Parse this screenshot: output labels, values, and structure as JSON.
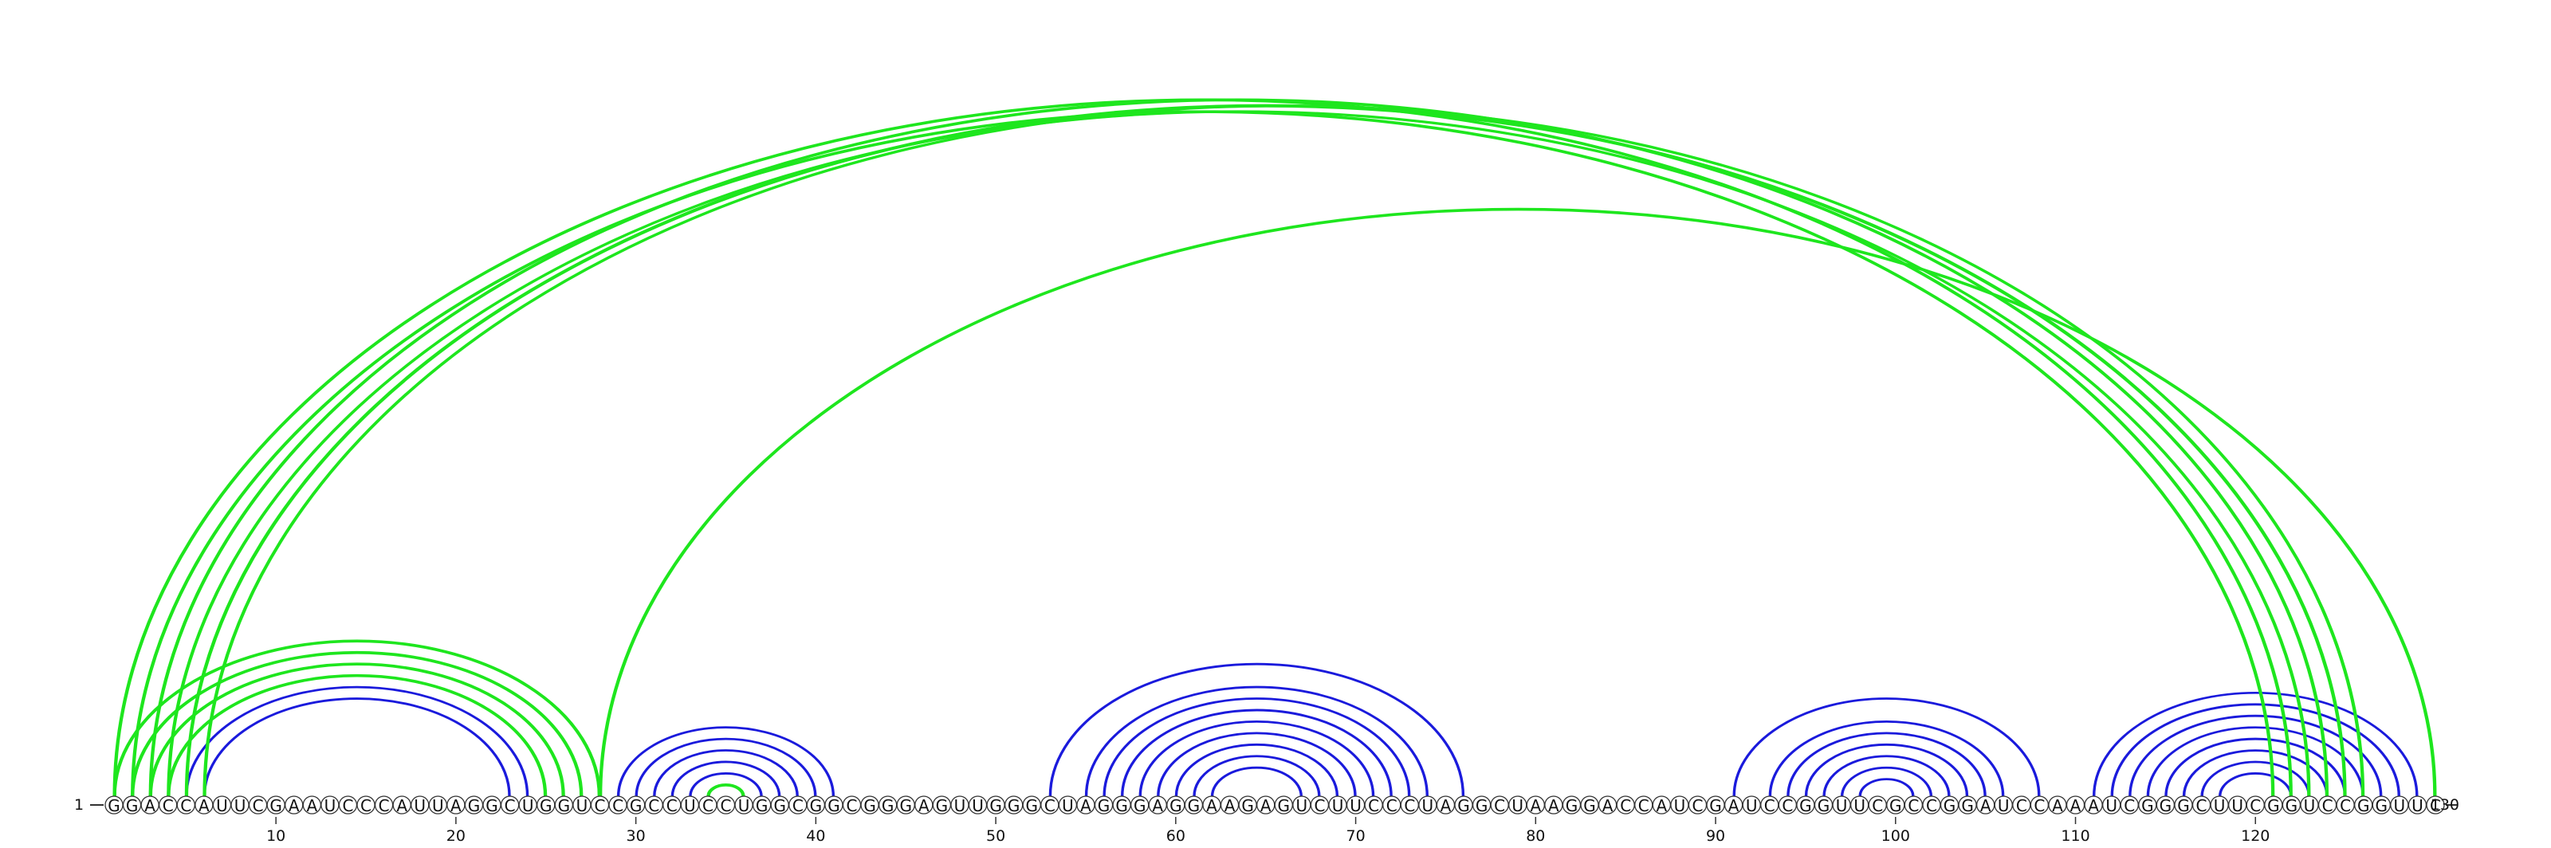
{
  "diagram": {
    "type": "rna-arc-diagram",
    "sequence": "GGACCAUUCGAAUCCCAUUAGGCUGGUCCGCCUCCUGGCGGCGGGAGUUGGGCUAGGGAGGAAGAGUCUUCCCUAGGCUAAGGACCAUCGAUCCGGUUCGCCGGAUCCAAAUCGGGCUUCGGUCCGGUUC",
    "start_label": "1",
    "end_label": "130",
    "tick_positions": [
      10,
      20,
      30,
      40,
      50,
      60,
      70,
      80,
      90,
      100,
      110,
      120
    ],
    "tick_labels": [
      "10",
      "20",
      "30",
      "40",
      "50",
      "60",
      "70",
      "80",
      "90",
      "100",
      "110",
      "120"
    ],
    "colors": {
      "blue_arcs": "#1a1adc",
      "green_arcs": "#1ee61e",
      "nucleotide_fill": "#ffffff",
      "nucleotide_stroke": "#333333"
    },
    "blue_pairs": [
      [
        5,
        24
      ],
      [
        6,
        23
      ],
      [
        29,
        41
      ],
      [
        30,
        40
      ],
      [
        31,
        39
      ],
      [
        32,
        38
      ],
      [
        33,
        37
      ],
      [
        53,
        76
      ],
      [
        55,
        74
      ],
      [
        56,
        73
      ],
      [
        57,
        72
      ],
      [
        58,
        71
      ],
      [
        59,
        70
      ],
      [
        60,
        69
      ],
      [
        61,
        68
      ],
      [
        62,
        67
      ],
      [
        91,
        108
      ],
      [
        93,
        106
      ],
      [
        94,
        105
      ],
      [
        95,
        104
      ],
      [
        96,
        103
      ],
      [
        97,
        102
      ],
      [
        98,
        101
      ],
      [
        111,
        129
      ],
      [
        112,
        128
      ],
      [
        113,
        127
      ],
      [
        114,
        126
      ],
      [
        115,
        125
      ],
      [
        116,
        124
      ],
      [
        117,
        123
      ],
      [
        118,
        122
      ]
    ],
    "green_pairs": [
      [
        1,
        122
      ],
      [
        2,
        121
      ],
      [
        3,
        124
      ],
      [
        4,
        123
      ],
      [
        5,
        125
      ],
      [
        6,
        126
      ],
      [
        1,
        28
      ],
      [
        2,
        27
      ],
      [
        3,
        26
      ],
      [
        4,
        25
      ],
      [
        34,
        36
      ],
      [
        28,
        130
      ]
    ]
  }
}
